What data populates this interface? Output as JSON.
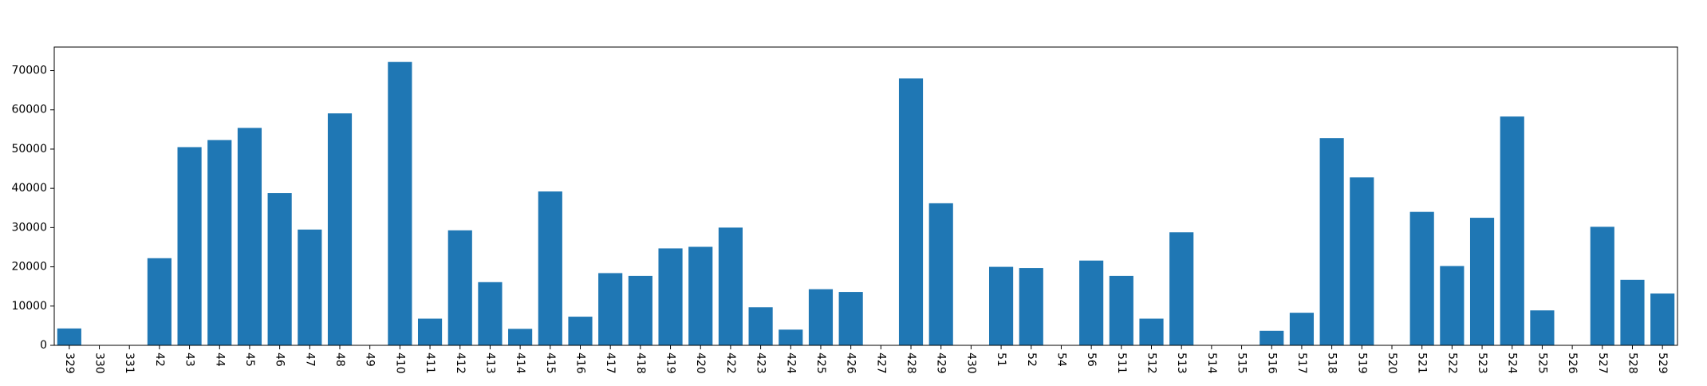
{
  "chart_data": {
    "type": "bar",
    "title": "",
    "xlabel": "",
    "ylabel": "",
    "bar_color": "#1f77b4",
    "ylim": [
      0,
      76000
    ],
    "yticks": [
      0,
      10000,
      20000,
      30000,
      40000,
      50000,
      60000,
      70000
    ],
    "ytick_labels": [
      "0",
      "10000",
      "20000",
      "30000",
      "40000",
      "50000",
      "60000",
      "70000"
    ],
    "grid": false,
    "categories": [
      "329",
      "330",
      "331",
      "42",
      "43",
      "44",
      "45",
      "46",
      "47",
      "48",
      "49",
      "410",
      "411",
      "412",
      "413",
      "414",
      "415",
      "416",
      "417",
      "418",
      "419",
      "420",
      "422",
      "423",
      "424",
      "425",
      "426",
      "427",
      "428",
      "429",
      "430",
      "51",
      "52",
      "54",
      "56",
      "511",
      "512",
      "513",
      "514",
      "515",
      "516",
      "517",
      "518",
      "519",
      "520",
      "521",
      "522",
      "523",
      "524",
      "525",
      "526",
      "527",
      "528",
      "529"
    ],
    "values": [
      4300,
      0,
      0,
      22200,
      50500,
      52300,
      55400,
      38800,
      29500,
      59100,
      0,
      72200,
      6800,
      29300,
      16100,
      4200,
      39200,
      7300,
      18400,
      17700,
      24700,
      25100,
      30000,
      9700,
      4000,
      14300,
      13600,
      0,
      68000,
      36200,
      0,
      20000,
      19700,
      0,
      21600,
      17700,
      6800,
      28800,
      0,
      0,
      3700,
      8300,
      52800,
      42800,
      0,
      34000,
      20200,
      32500,
      58300,
      8900,
      0,
      30200,
      16700,
      13200
    ]
  }
}
